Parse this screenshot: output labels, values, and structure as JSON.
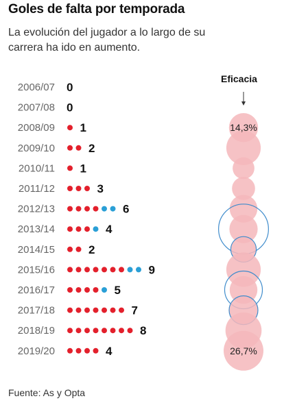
{
  "title": "Goles de falta por temporada",
  "subtitle": "La evolución del jugador a lo largo de su carrera ha ido en aumento.",
  "source": "Fuente: As y Opta",
  "colors": {
    "red_dot": "#e3202c",
    "blue_dot": "#2a9fd6",
    "bubble_fill": "#f4b7bb",
    "bubble_ring": "#3f8ccc",
    "season_text": "#666666",
    "count_text": "#111111"
  },
  "chart_data": {
    "type": "dot-count-with-bubbles",
    "bubble_header": "Eficacia",
    "series": [
      {
        "name": "",
        "color": "#e3202c"
      },
      {
        "name": "",
        "color": "#2a9fd6"
      }
    ],
    "rows": [
      {
        "season": "2006/07",
        "red": 0,
        "blue": 0,
        "total": "0",
        "bubble": null,
        "ring": null,
        "bubble_label": ""
      },
      {
        "season": "2007/08",
        "red": 0,
        "blue": 0,
        "total": "0",
        "bubble": null,
        "ring": null,
        "bubble_label": ""
      },
      {
        "season": "2008/09",
        "red": 1,
        "blue": 0,
        "total": "1",
        "bubble": 14.3,
        "ring": null,
        "bubble_label": "14,3%"
      },
      {
        "season": "2009/10",
        "red": 2,
        "blue": 0,
        "total": "2",
        "bubble": 20.0,
        "ring": null,
        "bubble_label": ""
      },
      {
        "season": "2010/11",
        "red": 1,
        "blue": 0,
        "total": "1",
        "bubble": 8.0,
        "ring": null,
        "bubble_label": ""
      },
      {
        "season": "2011/12",
        "red": 3,
        "blue": 0,
        "total": "3",
        "bubble": 9.0,
        "ring": null,
        "bubble_label": ""
      },
      {
        "season": "2012/13",
        "red": 4,
        "blue": 2,
        "total": "6",
        "bubble": 13.0,
        "ring": null,
        "bubble_label": ""
      },
      {
        "season": "2013/14",
        "red": 3,
        "blue": 1,
        "total": "4",
        "bubble": 13.5,
        "ring": 42.0,
        "bubble_label": ""
      },
      {
        "season": "2014/15",
        "red": 2,
        "blue": 0,
        "total": "2",
        "bubble": 11.0,
        "ring": 11.0,
        "bubble_label": ""
      },
      {
        "season": "2015/16",
        "red": 7,
        "blue": 2,
        "total": "9",
        "bubble": 20.0,
        "ring": null,
        "bubble_label": ""
      },
      {
        "season": "2016/17",
        "red": 4,
        "blue": 1,
        "total": "5",
        "bubble": 13.0,
        "ring": 24.0,
        "bubble_label": ""
      },
      {
        "season": "2017/18",
        "red": 7,
        "blue": 0,
        "total": "7",
        "bubble": 14.0,
        "ring": 14.0,
        "bubble_label": ""
      },
      {
        "season": "2018/19",
        "red": 8,
        "blue": 0,
        "total": "8",
        "bubble": 22.0,
        "ring": null,
        "bubble_label": ""
      },
      {
        "season": "2019/20",
        "red": 4,
        "blue": 0,
        "total": "4",
        "bubble": 26.7,
        "ring": null,
        "bubble_label": "26,7%"
      }
    ]
  }
}
